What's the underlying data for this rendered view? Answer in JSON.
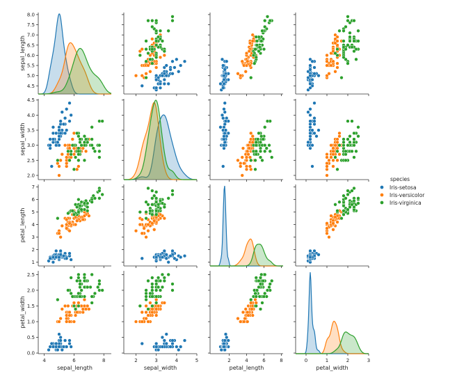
{
  "chart_data": {
    "type": "pairplot",
    "title": "",
    "hue": "species",
    "variables": [
      "sepal_length",
      "sepal_width",
      "petal_length",
      "petal_width"
    ],
    "legend": {
      "title": "species",
      "placement": "right-center",
      "entries": [
        {
          "label": "Iris-setosa",
          "color": "#1f77b4"
        },
        {
          "label": "Iris-versicolor",
          "color": "#ff7f0e"
        },
        {
          "label": "Iris-virginica",
          "color": "#2ca02c"
        }
      ]
    },
    "axes": {
      "sepal_length": {
        "range": [
          4.1,
          8.1
        ],
        "ticks": [
          4.5,
          5.0,
          5.5,
          6.0,
          6.5,
          7.0,
          7.5,
          8.0
        ],
        "tick_labels": [
          "4.5",
          "5.0",
          "5.5",
          "6.0",
          "6.5",
          "7.0",
          "7.5",
          "8.0"
        ],
        "x_ticks": [
          4,
          6,
          8
        ],
        "x_tick_labels": [
          "4",
          "6",
          "8"
        ],
        "x_range": [
          3.6,
          8.5
        ]
      },
      "sepal_width": {
        "range": [
          1.86,
          4.54
        ],
        "ticks": [
          2.0,
          2.5,
          3.0,
          3.5,
          4.0,
          4.5
        ],
        "tick_labels": [
          "2.0",
          "2.5",
          "3.0",
          "3.5",
          "4.0",
          "4.5"
        ],
        "x_ticks": [
          2,
          3,
          4,
          5
        ],
        "x_tick_labels": [
          "2",
          "3",
          "4",
          "5"
        ],
        "x_range": [
          1.4,
          5.0
        ]
      },
      "petal_length": {
        "range": [
          0.7,
          7.2
        ],
        "ticks": [
          1,
          2,
          3,
          4,
          5,
          6,
          7
        ],
        "tick_labels": [
          "1",
          "2",
          "3",
          "4",
          "5",
          "6",
          "7"
        ],
        "x_ticks": [
          2,
          4,
          6,
          8
        ],
        "x_tick_labels": [
          "2",
          "4",
          "6",
          "8"
        ],
        "x_range": [
          -0.2,
          8.2
        ]
      },
      "petal_width": {
        "range": [
          -0.02,
          2.62
        ],
        "ticks": [
          0.0,
          0.5,
          1.0,
          1.5,
          2.0,
          2.5
        ],
        "tick_labels": [
          "0.0",
          "0.5",
          "1.0",
          "1.5",
          "2.0",
          "2.5"
        ],
        "x_ticks": [
          0,
          1,
          2,
          3
        ],
        "x_tick_labels": [
          "0",
          "1",
          "2",
          "3"
        ],
        "x_range": [
          -0.5,
          3.0
        ]
      }
    },
    "series": [
      {
        "name": "Iris-setosa",
        "color": "#1f77b4",
        "sepal_length": [
          5.1,
          4.9,
          4.7,
          4.6,
          5.0,
          5.4,
          4.6,
          5.0,
          4.4,
          4.9,
          5.4,
          4.8,
          4.8,
          4.3,
          5.8,
          5.7,
          5.4,
          5.1,
          5.7,
          5.1,
          5.4,
          5.1,
          4.6,
          5.1,
          4.8,
          5.0,
          5.0,
          5.2,
          5.2,
          4.7,
          4.8,
          5.4,
          5.2,
          5.5,
          4.9,
          5.0,
          5.5,
          4.9,
          4.4,
          5.1,
          5.0,
          4.5,
          4.4,
          5.0,
          5.1,
          4.8,
          5.1,
          4.6,
          5.3,
          5.0
        ],
        "sepal_width": [
          3.5,
          3.0,
          3.2,
          3.1,
          3.6,
          3.9,
          3.4,
          3.4,
          2.9,
          3.1,
          3.7,
          3.4,
          3.0,
          3.0,
          4.0,
          4.4,
          3.9,
          3.5,
          3.8,
          3.8,
          3.4,
          3.7,
          3.6,
          3.3,
          3.4,
          3.0,
          3.4,
          3.5,
          3.4,
          3.2,
          3.1,
          3.4,
          4.1,
          4.2,
          3.1,
          3.2,
          3.5,
          3.1,
          3.0,
          3.4,
          3.5,
          2.3,
          3.2,
          3.5,
          3.8,
          3.0,
          3.8,
          3.2,
          3.7,
          3.3
        ],
        "petal_length": [
          1.4,
          1.4,
          1.3,
          1.5,
          1.4,
          1.7,
          1.4,
          1.5,
          1.4,
          1.5,
          1.5,
          1.6,
          1.4,
          1.1,
          1.2,
          1.5,
          1.3,
          1.4,
          1.7,
          1.5,
          1.7,
          1.5,
          1.0,
          1.7,
          1.9,
          1.6,
          1.6,
          1.5,
          1.4,
          1.6,
          1.6,
          1.5,
          1.5,
          1.4,
          1.5,
          1.2,
          1.3,
          1.5,
          1.3,
          1.5,
          1.3,
          1.3,
          1.3,
          1.6,
          1.9,
          1.4,
          1.6,
          1.4,
          1.5,
          1.4
        ],
        "petal_width": [
          0.2,
          0.2,
          0.2,
          0.2,
          0.2,
          0.4,
          0.3,
          0.2,
          0.2,
          0.1,
          0.2,
          0.2,
          0.1,
          0.1,
          0.2,
          0.4,
          0.4,
          0.3,
          0.3,
          0.3,
          0.2,
          0.4,
          0.2,
          0.5,
          0.2,
          0.2,
          0.4,
          0.2,
          0.2,
          0.2,
          0.2,
          0.4,
          0.1,
          0.2,
          0.1,
          0.2,
          0.2,
          0.1,
          0.2,
          0.2,
          0.3,
          0.3,
          0.2,
          0.6,
          0.4,
          0.3,
          0.2,
          0.2,
          0.2,
          0.2
        ]
      },
      {
        "name": "Iris-versicolor",
        "color": "#ff7f0e",
        "sepal_length": [
          7.0,
          6.4,
          6.9,
          5.5,
          6.5,
          5.7,
          6.3,
          4.9,
          6.6,
          5.2,
          5.0,
          5.9,
          6.0,
          6.1,
          5.6,
          6.7,
          5.6,
          5.8,
          6.2,
          5.6,
          5.9,
          6.1,
          6.3,
          6.1,
          6.4,
          6.6,
          6.8,
          6.7,
          6.0,
          5.7,
          5.5,
          5.5,
          5.8,
          6.0,
          5.4,
          6.0,
          6.7,
          6.3,
          5.6,
          5.5,
          5.5,
          6.1,
          5.8,
          5.0,
          5.6,
          5.7,
          5.7,
          6.2,
          5.1,
          5.7
        ],
        "sepal_width": [
          3.2,
          3.2,
          3.1,
          2.3,
          2.8,
          2.8,
          3.3,
          2.4,
          2.9,
          2.7,
          2.0,
          3.0,
          2.2,
          2.9,
          2.9,
          3.1,
          3.0,
          2.7,
          2.2,
          2.5,
          3.2,
          2.8,
          2.5,
          2.8,
          2.9,
          3.0,
          2.8,
          3.0,
          2.9,
          2.6,
          2.4,
          2.4,
          2.7,
          2.7,
          3.0,
          3.4,
          3.1,
          2.3,
          3.0,
          2.5,
          2.6,
          3.0,
          2.6,
          2.3,
          2.7,
          3.0,
          2.9,
          2.9,
          2.5,
          2.8
        ],
        "petal_length": [
          4.7,
          4.5,
          4.9,
          4.0,
          4.6,
          4.5,
          4.7,
          3.3,
          4.6,
          3.9,
          3.5,
          4.2,
          4.0,
          4.7,
          3.6,
          4.4,
          4.5,
          4.1,
          4.5,
          3.9,
          4.8,
          4.0,
          4.9,
          4.7,
          4.3,
          4.4,
          4.8,
          5.0,
          4.5,
          3.5,
          3.8,
          3.7,
          3.9,
          5.1,
          4.5,
          4.5,
          4.7,
          4.4,
          4.1,
          4.0,
          4.4,
          4.6,
          4.0,
          3.3,
          4.2,
          4.2,
          4.2,
          4.3,
          3.0,
          4.1
        ],
        "petal_width": [
          1.4,
          1.5,
          1.5,
          1.3,
          1.5,
          1.3,
          1.6,
          1.0,
          1.3,
          1.4,
          1.0,
          1.5,
          1.0,
          1.4,
          1.3,
          1.4,
          1.5,
          1.0,
          1.5,
          1.1,
          1.8,
          1.3,
          1.5,
          1.2,
          1.3,
          1.4,
          1.4,
          1.7,
          1.5,
          1.0,
          1.1,
          1.0,
          1.2,
          1.6,
          1.5,
          1.6,
          1.5,
          1.3,
          1.3,
          1.3,
          1.2,
          1.4,
          1.2,
          1.0,
          1.3,
          1.2,
          1.3,
          1.3,
          1.1,
          1.3
        ]
      },
      {
        "name": "Iris-virginica",
        "color": "#2ca02c",
        "sepal_length": [
          6.3,
          5.8,
          7.1,
          6.3,
          6.5,
          7.6,
          4.9,
          7.3,
          6.7,
          7.2,
          6.5,
          6.4,
          6.8,
          5.7,
          5.8,
          6.4,
          6.5,
          7.7,
          7.7,
          6.0,
          6.9,
          5.6,
          7.7,
          6.3,
          6.7,
          7.2,
          6.2,
          6.1,
          6.4,
          7.2,
          7.4,
          7.9,
          6.4,
          6.3,
          6.1,
          7.7,
          6.3,
          6.4,
          6.0,
          6.9,
          6.7,
          6.9,
          5.8,
          6.8,
          6.7,
          6.7,
          6.3,
          6.5,
          6.2,
          5.9
        ],
        "sepal_width": [
          3.3,
          2.7,
          3.0,
          2.9,
          3.0,
          3.0,
          2.5,
          2.9,
          2.5,
          3.6,
          3.2,
          2.7,
          3.0,
          2.5,
          2.8,
          3.2,
          3.0,
          3.8,
          2.6,
          2.2,
          3.2,
          2.8,
          2.8,
          2.7,
          3.3,
          3.2,
          2.8,
          3.0,
          2.8,
          3.0,
          2.8,
          3.8,
          2.8,
          2.8,
          2.6,
          3.0,
          3.4,
          3.1,
          3.0,
          3.1,
          3.1,
          3.1,
          2.7,
          3.2,
          3.3,
          3.0,
          2.5,
          3.0,
          3.4,
          3.0
        ],
        "petal_length": [
          6.0,
          5.1,
          5.9,
          5.6,
          5.8,
          6.6,
          4.5,
          6.3,
          5.8,
          6.1,
          5.1,
          5.3,
          5.5,
          5.0,
          5.1,
          5.3,
          5.5,
          6.7,
          6.9,
          5.0,
          5.7,
          4.9,
          6.7,
          4.9,
          5.7,
          6.0,
          4.8,
          4.9,
          5.6,
          5.8,
          6.1,
          6.4,
          5.6,
          5.1,
          5.6,
          6.1,
          5.6,
          5.5,
          4.8,
          5.4,
          5.6,
          5.1,
          5.1,
          5.9,
          5.7,
          5.2,
          5.0,
          5.2,
          5.4,
          5.1
        ],
        "petal_width": [
          2.5,
          1.9,
          2.1,
          1.8,
          2.2,
          2.1,
          1.7,
          1.8,
          1.8,
          2.5,
          2.0,
          1.9,
          2.1,
          2.0,
          2.4,
          2.3,
          1.8,
          2.2,
          2.3,
          1.5,
          2.3,
          2.0,
          2.0,
          1.8,
          2.1,
          1.8,
          1.8,
          1.8,
          2.1,
          1.6,
          1.9,
          2.0,
          2.2,
          1.5,
          1.4,
          2.3,
          2.4,
          1.8,
          1.8,
          2.1,
          2.4,
          2.3,
          1.9,
          2.3,
          2.5,
          2.3,
          1.9,
          2.0,
          2.3,
          1.8
        ]
      }
    ]
  }
}
